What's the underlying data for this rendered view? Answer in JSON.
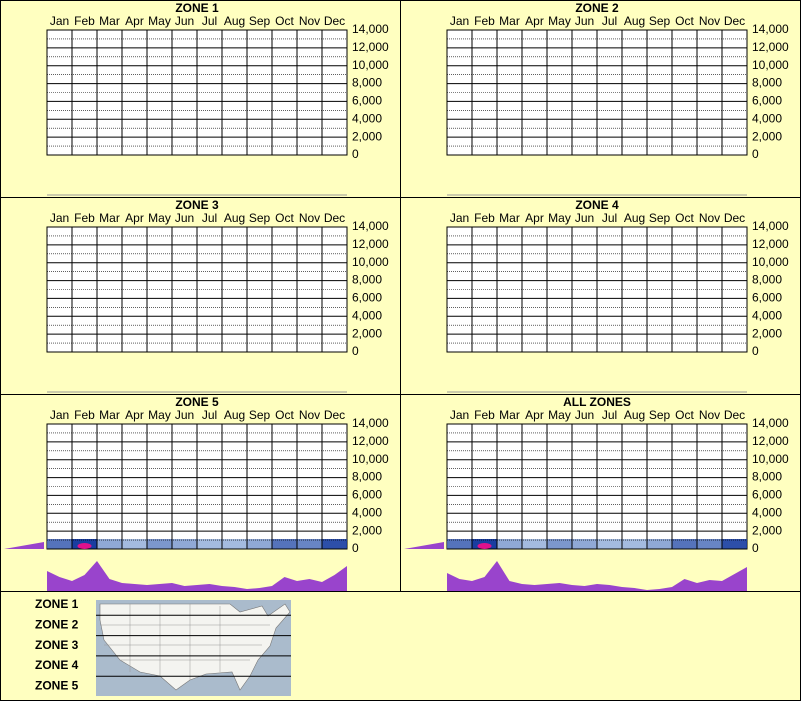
{
  "chart_data": [
    {
      "type": "heatmap",
      "title": "ZONE 1",
      "categories": [
        "Jan",
        "Feb",
        "Mar",
        "Apr",
        "May",
        "Jun",
        "Jul",
        "Aug",
        "Sep",
        "Oct",
        "Nov",
        "Dec"
      ],
      "ylim": [
        0,
        14000
      ],
      "yticks": [
        0,
        {
          "value": 2000,
          "label": "2,000"
        },
        {
          "value": 4000,
          "label": "4,000"
        },
        {
          "value": 6000,
          "label": "6,000"
        },
        {
          "value": 8000,
          "label": "8,000"
        },
        {
          "value": 10000,
          "label": "10,000"
        },
        {
          "value": 12000,
          "label": "12,000"
        },
        {
          "value": 14000,
          "label": "14,000"
        }
      ],
      "grid": true
    },
    {
      "type": "heatmap",
      "title": "ZONE 2",
      "categories": [
        "Jan",
        "Feb",
        "Mar",
        "Apr",
        "May",
        "Jun",
        "Jul",
        "Aug",
        "Sep",
        "Oct",
        "Nov",
        "Dec"
      ],
      "ylim": [
        0,
        14000
      ],
      "yticks": [
        0,
        {
          "value": 2000,
          "label": "2,000"
        },
        {
          "value": 4000,
          "label": "4,000"
        },
        {
          "value": 6000,
          "label": "6,000"
        },
        {
          "value": 8000,
          "label": "8,000"
        },
        {
          "value": 10000,
          "label": "10,000"
        },
        {
          "value": 12000,
          "label": "12,000"
        },
        {
          "value": 14000,
          "label": "14,000"
        }
      ],
      "grid": true
    },
    {
      "type": "heatmap",
      "title": "ZONE 3",
      "categories": [
        "Jan",
        "Feb",
        "Mar",
        "Apr",
        "May",
        "Jun",
        "Jul",
        "Aug",
        "Sep",
        "Oct",
        "Nov",
        "Dec"
      ],
      "ylim": [
        0,
        14000
      ],
      "yticks": [
        0,
        {
          "value": 2000,
          "label": "2,000"
        },
        {
          "value": 4000,
          "label": "4,000"
        },
        {
          "value": 6000,
          "label": "6,000"
        },
        {
          "value": 8000,
          "label": "8,000"
        },
        {
          "value": 10000,
          "label": "10,000"
        },
        {
          "value": 12000,
          "label": "12,000"
        },
        {
          "value": 14000,
          "label": "14,000"
        }
      ],
      "grid": true
    },
    {
      "type": "heatmap",
      "title": "ZONE 4",
      "categories": [
        "Jan",
        "Feb",
        "Mar",
        "Apr",
        "May",
        "Jun",
        "Jul",
        "Aug",
        "Sep",
        "Oct",
        "Nov",
        "Dec"
      ],
      "ylim": [
        0,
        14000
      ],
      "yticks": [
        0,
        {
          "value": 2000,
          "label": "2,000"
        },
        {
          "value": 4000,
          "label": "4,000"
        },
        {
          "value": 6000,
          "label": "6,000"
        },
        {
          "value": 8000,
          "label": "8,000"
        },
        {
          "value": 10000,
          "label": "10,000"
        },
        {
          "value": 12000,
          "label": "12,000"
        },
        {
          "value": 14000,
          "label": "14,000"
        }
      ],
      "grid": true
    },
    {
      "type": "heatmap",
      "title": "ZONE 5",
      "categories": [
        "Jan",
        "Feb",
        "Mar",
        "Apr",
        "May",
        "Jun",
        "Jul",
        "Aug",
        "Sep",
        "Oct",
        "Nov",
        "Dec"
      ],
      "ylim": [
        0,
        14000
      ],
      "yticks": [
        0,
        {
          "value": 2000,
          "label": "2,000"
        },
        {
          "value": 4000,
          "label": "4,000"
        },
        {
          "value": 6000,
          "label": "6,000"
        },
        {
          "value": 8000,
          "label": "8,000"
        },
        {
          "value": 10000,
          "label": "10,000"
        },
        {
          "value": 12000,
          "label": "12,000"
        },
        {
          "value": 14000,
          "label": "14,000"
        }
      ],
      "grid": true,
      "heat": [
        0.7,
        1,
        0.4,
        0.3,
        0.5,
        0.4,
        0.3,
        0.3,
        0.4,
        0.7,
        0.6,
        0.9
      ],
      "profile": [
        20,
        14,
        10,
        16,
        30,
        12,
        8,
        7,
        6,
        7,
        8,
        5,
        6,
        7,
        5,
        4,
        2,
        3,
        5,
        14,
        10,
        12,
        9,
        16,
        25
      ],
      "profile_color": "#9944cc"
    },
    {
      "type": "heatmap",
      "title": "ALL ZONES",
      "categories": [
        "Jan",
        "Feb",
        "Mar",
        "Apr",
        "May",
        "Jun",
        "Jul",
        "Aug",
        "Sep",
        "Oct",
        "Nov",
        "Dec"
      ],
      "ylim": [
        0,
        14000
      ],
      "yticks": [
        0,
        {
          "value": 2000,
          "label": "2,000"
        },
        {
          "value": 4000,
          "label": "4,000"
        },
        {
          "value": 6000,
          "label": "6,000"
        },
        {
          "value": 8000,
          "label": "8,000"
        },
        {
          "value": 10000,
          "label": "10,000"
        },
        {
          "value": 12000,
          "label": "12,000"
        },
        {
          "value": 14000,
          "label": "14,000"
        }
      ],
      "grid": true,
      "heat": [
        0.7,
        1,
        0.4,
        0.3,
        0.5,
        0.4,
        0.3,
        0.3,
        0.4,
        0.7,
        0.6,
        0.9
      ],
      "profile": [
        18,
        12,
        10,
        14,
        30,
        10,
        7,
        6,
        7,
        8,
        6,
        5,
        7,
        6,
        4,
        3,
        1,
        2,
        4,
        12,
        8,
        11,
        10,
        17,
        24
      ],
      "profile_color": "#9944cc"
    }
  ],
  "legend": {
    "zones": [
      "ZONE 1",
      "ZONE 2",
      "ZONE 3",
      "ZONE 4",
      "ZONE 5"
    ]
  }
}
